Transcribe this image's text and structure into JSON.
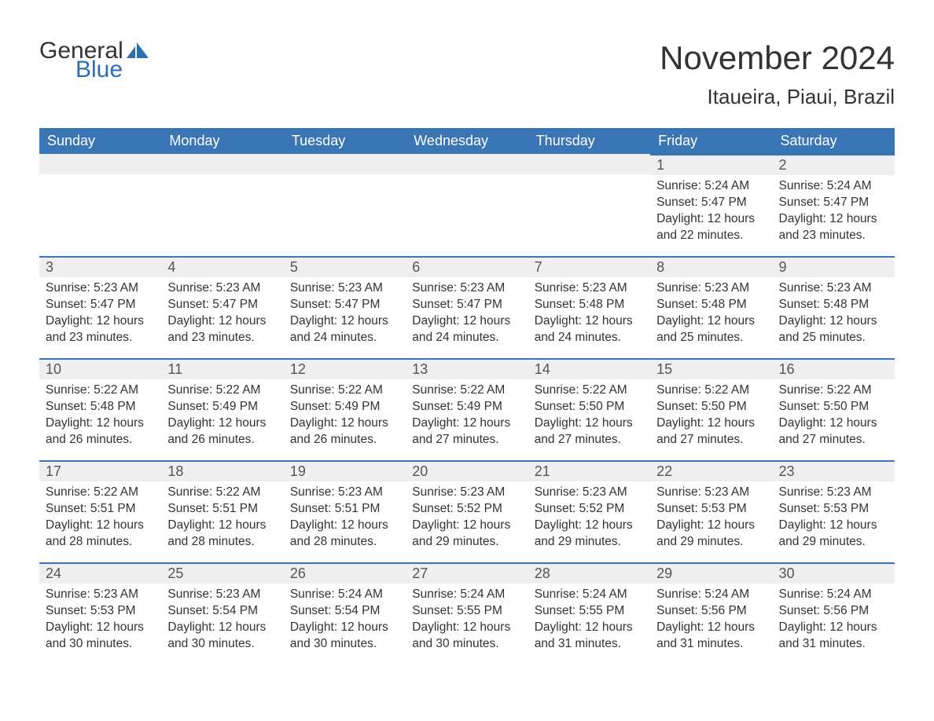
{
  "brand": {
    "word1": "General",
    "word2": "Blue",
    "text_color": "#333333",
    "accent_color": "#2d6fb5",
    "sail_color": "#2d6fb5"
  },
  "header": {
    "month_title": "November 2024",
    "location": "Itaueira, Piaui, Brazil"
  },
  "calendar": {
    "header_bg": "#3a76b6",
    "header_text_color": "#ffffff",
    "row_border_color": "#3a76b6",
    "daynum_bg": "#efefef",
    "text_color": "#333333",
    "background_color": "#ffffff",
    "font_family": "Arial",
    "day_headers": [
      "Sunday",
      "Monday",
      "Tuesday",
      "Wednesday",
      "Thursday",
      "Friday",
      "Saturday"
    ],
    "weeks": [
      [
        null,
        null,
        null,
        null,
        null,
        {
          "day": "1",
          "sunrise": "Sunrise: 5:24 AM",
          "sunset": "Sunset: 5:47 PM",
          "daylight1": "Daylight: 12 hours",
          "daylight2": "and 22 minutes."
        },
        {
          "day": "2",
          "sunrise": "Sunrise: 5:24 AM",
          "sunset": "Sunset: 5:47 PM",
          "daylight1": "Daylight: 12 hours",
          "daylight2": "and 23 minutes."
        }
      ],
      [
        {
          "day": "3",
          "sunrise": "Sunrise: 5:23 AM",
          "sunset": "Sunset: 5:47 PM",
          "daylight1": "Daylight: 12 hours",
          "daylight2": "and 23 minutes."
        },
        {
          "day": "4",
          "sunrise": "Sunrise: 5:23 AM",
          "sunset": "Sunset: 5:47 PM",
          "daylight1": "Daylight: 12 hours",
          "daylight2": "and 23 minutes."
        },
        {
          "day": "5",
          "sunrise": "Sunrise: 5:23 AM",
          "sunset": "Sunset: 5:47 PM",
          "daylight1": "Daylight: 12 hours",
          "daylight2": "and 24 minutes."
        },
        {
          "day": "6",
          "sunrise": "Sunrise: 5:23 AM",
          "sunset": "Sunset: 5:47 PM",
          "daylight1": "Daylight: 12 hours",
          "daylight2": "and 24 minutes."
        },
        {
          "day": "7",
          "sunrise": "Sunrise: 5:23 AM",
          "sunset": "Sunset: 5:48 PM",
          "daylight1": "Daylight: 12 hours",
          "daylight2": "and 24 minutes."
        },
        {
          "day": "8",
          "sunrise": "Sunrise: 5:23 AM",
          "sunset": "Sunset: 5:48 PM",
          "daylight1": "Daylight: 12 hours",
          "daylight2": "and 25 minutes."
        },
        {
          "day": "9",
          "sunrise": "Sunrise: 5:23 AM",
          "sunset": "Sunset: 5:48 PM",
          "daylight1": "Daylight: 12 hours",
          "daylight2": "and 25 minutes."
        }
      ],
      [
        {
          "day": "10",
          "sunrise": "Sunrise: 5:22 AM",
          "sunset": "Sunset: 5:48 PM",
          "daylight1": "Daylight: 12 hours",
          "daylight2": "and 26 minutes."
        },
        {
          "day": "11",
          "sunrise": "Sunrise: 5:22 AM",
          "sunset": "Sunset: 5:49 PM",
          "daylight1": "Daylight: 12 hours",
          "daylight2": "and 26 minutes."
        },
        {
          "day": "12",
          "sunrise": "Sunrise: 5:22 AM",
          "sunset": "Sunset: 5:49 PM",
          "daylight1": "Daylight: 12 hours",
          "daylight2": "and 26 minutes."
        },
        {
          "day": "13",
          "sunrise": "Sunrise: 5:22 AM",
          "sunset": "Sunset: 5:49 PM",
          "daylight1": "Daylight: 12 hours",
          "daylight2": "and 27 minutes."
        },
        {
          "day": "14",
          "sunrise": "Sunrise: 5:22 AM",
          "sunset": "Sunset: 5:50 PM",
          "daylight1": "Daylight: 12 hours",
          "daylight2": "and 27 minutes."
        },
        {
          "day": "15",
          "sunrise": "Sunrise: 5:22 AM",
          "sunset": "Sunset: 5:50 PM",
          "daylight1": "Daylight: 12 hours",
          "daylight2": "and 27 minutes."
        },
        {
          "day": "16",
          "sunrise": "Sunrise: 5:22 AM",
          "sunset": "Sunset: 5:50 PM",
          "daylight1": "Daylight: 12 hours",
          "daylight2": "and 27 minutes."
        }
      ],
      [
        {
          "day": "17",
          "sunrise": "Sunrise: 5:22 AM",
          "sunset": "Sunset: 5:51 PM",
          "daylight1": "Daylight: 12 hours",
          "daylight2": "and 28 minutes."
        },
        {
          "day": "18",
          "sunrise": "Sunrise: 5:22 AM",
          "sunset": "Sunset: 5:51 PM",
          "daylight1": "Daylight: 12 hours",
          "daylight2": "and 28 minutes."
        },
        {
          "day": "19",
          "sunrise": "Sunrise: 5:23 AM",
          "sunset": "Sunset: 5:51 PM",
          "daylight1": "Daylight: 12 hours",
          "daylight2": "and 28 minutes."
        },
        {
          "day": "20",
          "sunrise": "Sunrise: 5:23 AM",
          "sunset": "Sunset: 5:52 PM",
          "daylight1": "Daylight: 12 hours",
          "daylight2": "and 29 minutes."
        },
        {
          "day": "21",
          "sunrise": "Sunrise: 5:23 AM",
          "sunset": "Sunset: 5:52 PM",
          "daylight1": "Daylight: 12 hours",
          "daylight2": "and 29 minutes."
        },
        {
          "day": "22",
          "sunrise": "Sunrise: 5:23 AM",
          "sunset": "Sunset: 5:53 PM",
          "daylight1": "Daylight: 12 hours",
          "daylight2": "and 29 minutes."
        },
        {
          "day": "23",
          "sunrise": "Sunrise: 5:23 AM",
          "sunset": "Sunset: 5:53 PM",
          "daylight1": "Daylight: 12 hours",
          "daylight2": "and 29 minutes."
        }
      ],
      [
        {
          "day": "24",
          "sunrise": "Sunrise: 5:23 AM",
          "sunset": "Sunset: 5:53 PM",
          "daylight1": "Daylight: 12 hours",
          "daylight2": "and 30 minutes."
        },
        {
          "day": "25",
          "sunrise": "Sunrise: 5:23 AM",
          "sunset": "Sunset: 5:54 PM",
          "daylight1": "Daylight: 12 hours",
          "daylight2": "and 30 minutes."
        },
        {
          "day": "26",
          "sunrise": "Sunrise: 5:24 AM",
          "sunset": "Sunset: 5:54 PM",
          "daylight1": "Daylight: 12 hours",
          "daylight2": "and 30 minutes."
        },
        {
          "day": "27",
          "sunrise": "Sunrise: 5:24 AM",
          "sunset": "Sunset: 5:55 PM",
          "daylight1": "Daylight: 12 hours",
          "daylight2": "and 30 minutes."
        },
        {
          "day": "28",
          "sunrise": "Sunrise: 5:24 AM",
          "sunset": "Sunset: 5:55 PM",
          "daylight1": "Daylight: 12 hours",
          "daylight2": "and 31 minutes."
        },
        {
          "day": "29",
          "sunrise": "Sunrise: 5:24 AM",
          "sunset": "Sunset: 5:56 PM",
          "daylight1": "Daylight: 12 hours",
          "daylight2": "and 31 minutes."
        },
        {
          "day": "30",
          "sunrise": "Sunrise: 5:24 AM",
          "sunset": "Sunset: 5:56 PM",
          "daylight1": "Daylight: 12 hours",
          "daylight2": "and 31 minutes."
        }
      ]
    ]
  }
}
